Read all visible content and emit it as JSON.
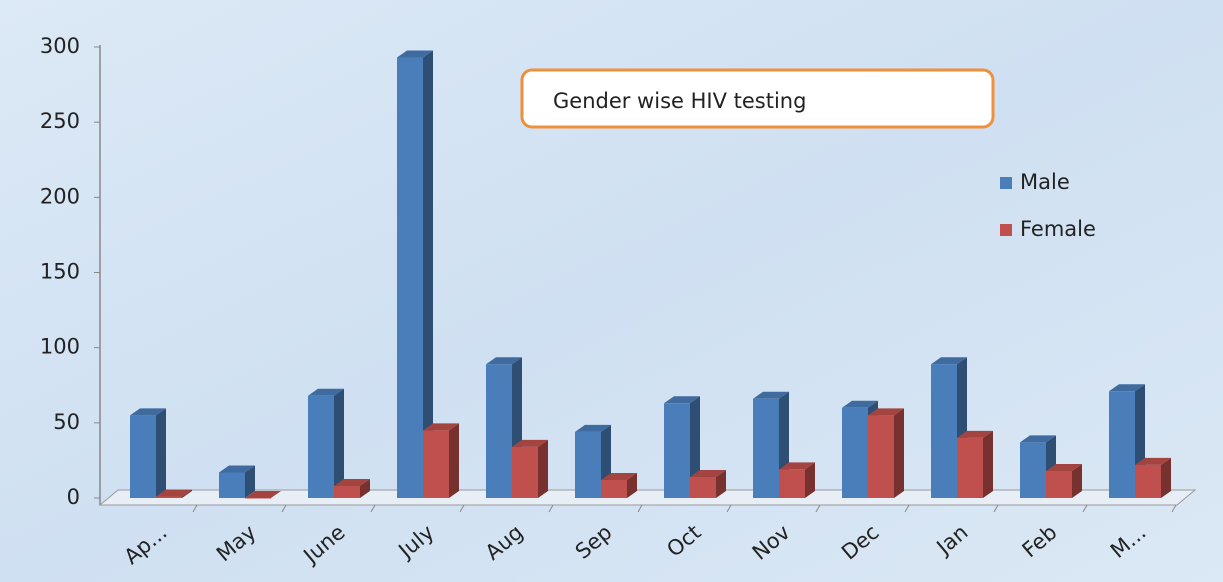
{
  "chart_data": {
    "type": "bar3d",
    "title": "Gender wise HIV testing",
    "categories": [
      "Ap...",
      "May",
      "June",
      "July",
      "Aug",
      "Sep",
      "Oct",
      "Nov",
      "Dec",
      "Jan",
      "Feb",
      "M..."
    ],
    "series": [
      {
        "name": "Male",
        "color": "#4a7ebb",
        "values": [
          55,
          17,
          68,
          293,
          89,
          44,
          63,
          66,
          60,
          89,
          37,
          71
        ]
      },
      {
        "name": "Female",
        "color": "#c0504d",
        "values": [
          1,
          0,
          8,
          45,
          34,
          12,
          14,
          19,
          55,
          40,
          18,
          22
        ]
      }
    ],
    "ylim": [
      0,
      300
    ],
    "yticks": [
      0,
      50,
      100,
      150,
      200,
      250,
      300
    ]
  }
}
